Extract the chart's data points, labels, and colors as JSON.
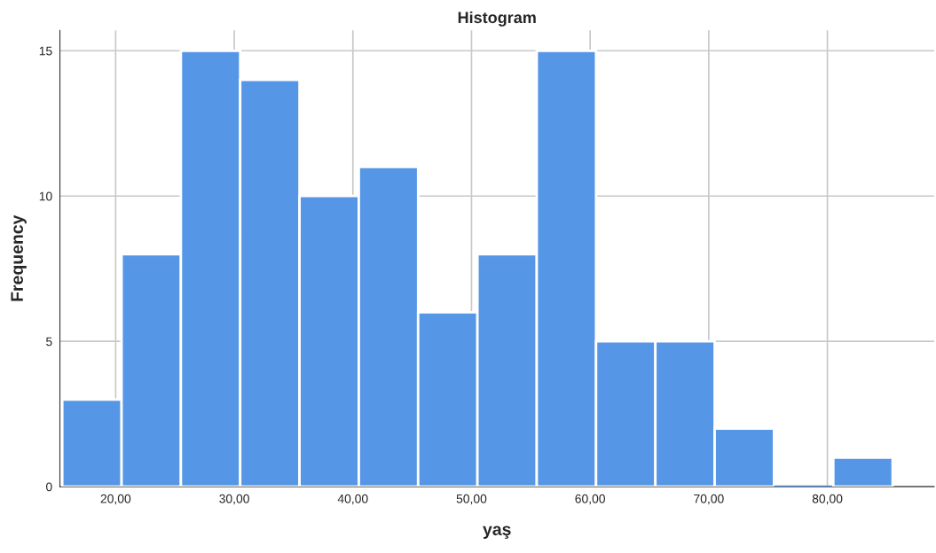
{
  "chart_data": {
    "type": "histogram",
    "title": "Histogram",
    "xlabel": "yaş",
    "ylabel": "Frequency",
    "bins": [
      15.5,
      20.5,
      25.5,
      30.5,
      35.5,
      40.5,
      45.5,
      50.5,
      55.5,
      60.5,
      65.5,
      70.5,
      75.5,
      80.5,
      85.5
    ],
    "values": [
      3,
      8,
      15,
      14,
      10,
      11,
      6,
      8,
      15,
      5,
      5,
      2,
      0,
      1
    ],
    "color": "#5596e6",
    "xlim": [
      15.3,
      89
    ],
    "xticks": [
      {
        "value": 20,
        "label": "20,00"
      },
      {
        "value": 30,
        "label": "30,00"
      },
      {
        "value": 40,
        "label": "40,00"
      },
      {
        "value": 50,
        "label": "50,00"
      },
      {
        "value": 60,
        "label": "60,00"
      },
      {
        "value": 70,
        "label": "70,00"
      },
      {
        "value": 80,
        "label": "80,00"
      }
    ],
    "ylim": [
      0,
      15.7
    ],
    "yticks": [
      0,
      5,
      10,
      15
    ],
    "grid": true
  }
}
